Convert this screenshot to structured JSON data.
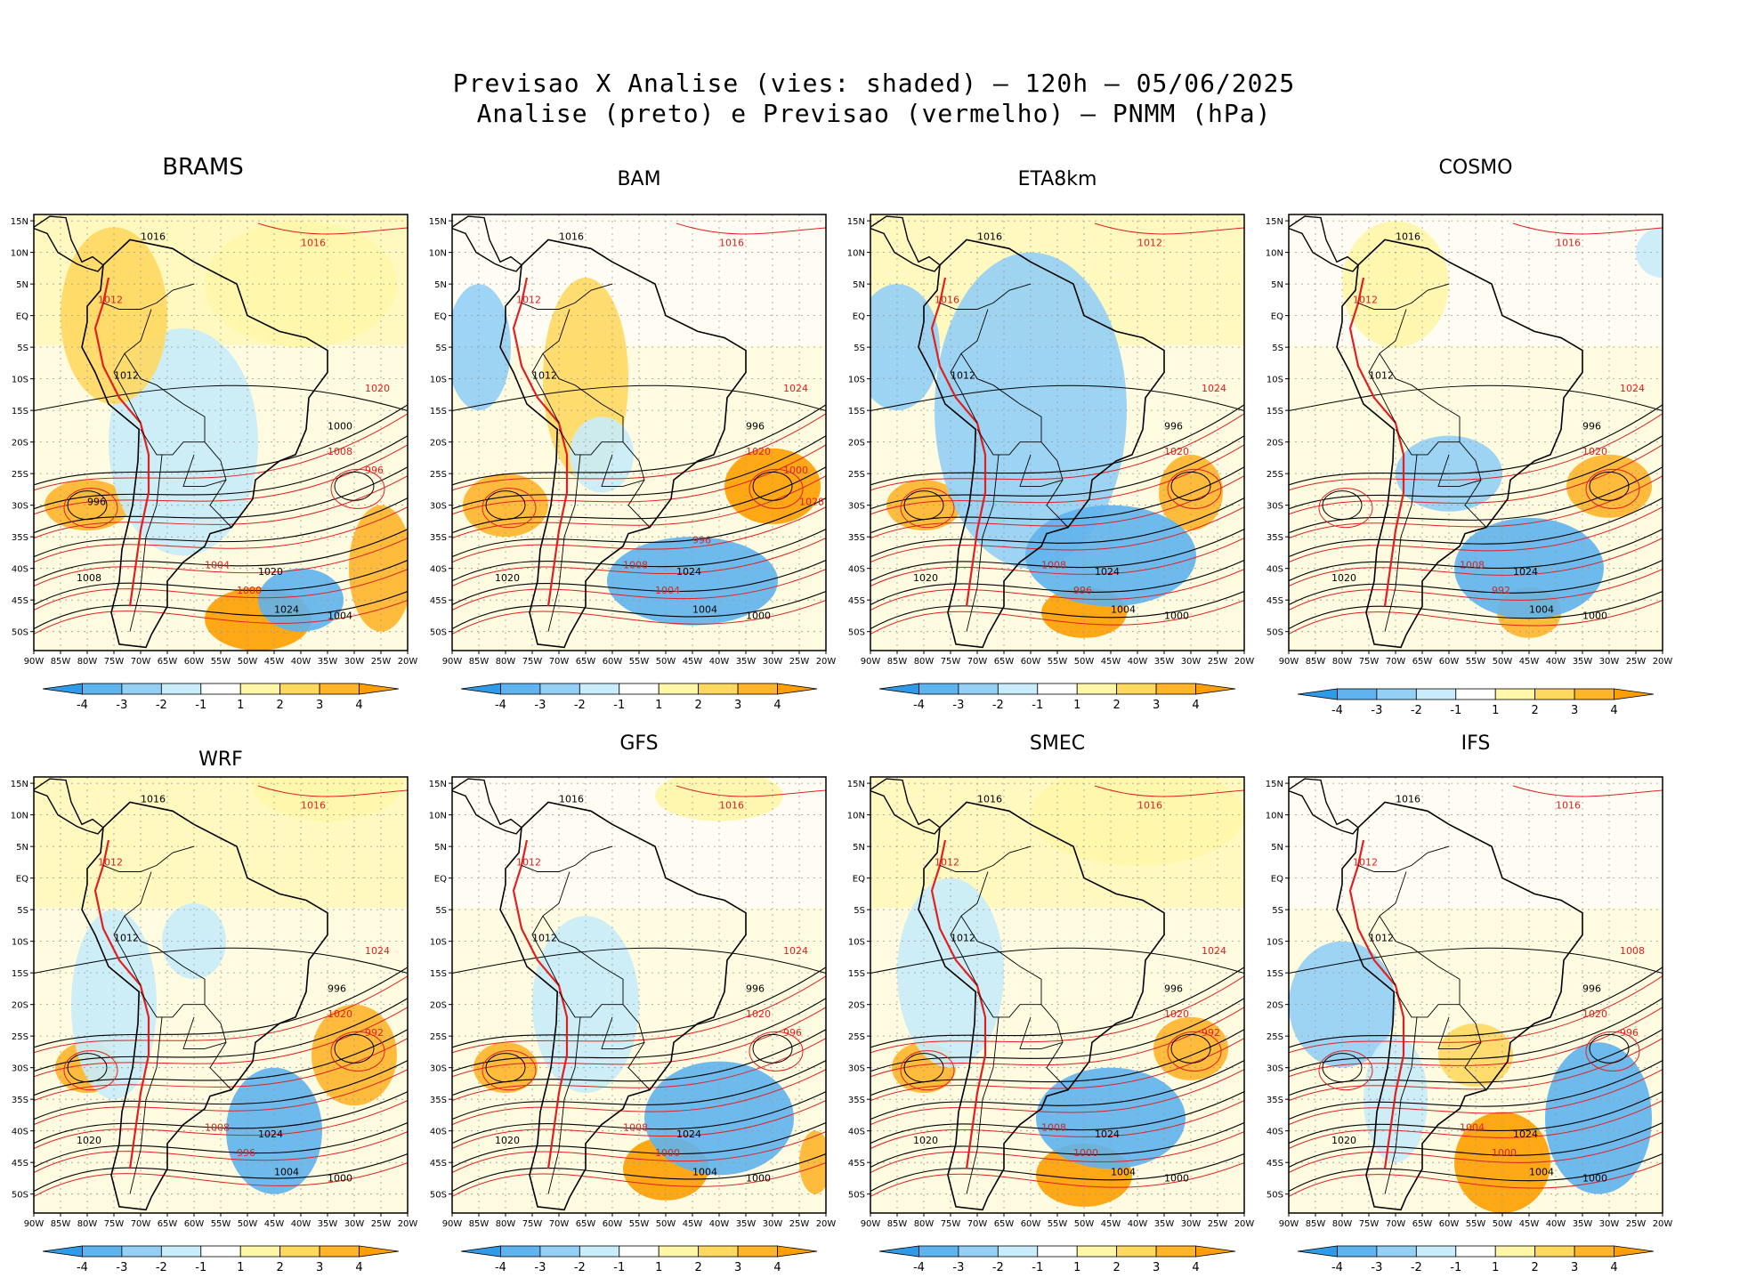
{
  "header": {
    "line1": "Previsao X Analise (vies: shaded) – 120h – 05/06/2025",
    "line2": "Analise (preto) e Previsao (vermelho) – PNMM (hPa)"
  },
  "axes": {
    "lat_labels": [
      "15N",
      "10N",
      "5N",
      "EQ",
      "5S",
      "10S",
      "15S",
      "20S",
      "25S",
      "30S",
      "35S",
      "40S",
      "45S",
      "50S"
    ],
    "lon_labels": [
      "90W",
      "85W",
      "80W",
      "75W",
      "70W",
      "65W",
      "60W",
      "55W",
      "50W",
      "45W",
      "40W",
      "35W",
      "30W",
      "25W",
      "20W"
    ]
  },
  "colorbar": {
    "labels": [
      "-4",
      "-3",
      "-2",
      "-1",
      "1",
      "2",
      "3",
      "4"
    ],
    "colors": [
      "#2f9be8",
      "#5fb3ee",
      "#94cff5",
      "#c8ecfa",
      "#ffffff",
      "#fff6a8",
      "#ffd860",
      "#ffb52a",
      "#ff9e00"
    ]
  },
  "colors": {
    "analysis": "#000000",
    "forecast": "#e02020",
    "coast": "#000000"
  },
  "panels": [
    {
      "name": "BRAMS",
      "isobars_black": [
        "1016",
        "1012",
        "1008",
        "1020",
        "1024",
        "1004",
        "1000",
        "996"
      ],
      "isobars_red": [
        "1016",
        "1012",
        "1008",
        "1020",
        "1004",
        "1000",
        "996"
      ]
    },
    {
      "name": "BAM",
      "isobars_black": [
        "1016",
        "1012",
        "1020",
        "1024",
        "1004",
        "1000",
        "996"
      ],
      "isobars_red": [
        "1016",
        "1012",
        "1020",
        "1024",
        "1008",
        "1004",
        "1000",
        "996",
        "1028"
      ]
    },
    {
      "name": "ETA8km",
      "isobars_black": [
        "1016",
        "1012",
        "1020",
        "1024",
        "1004",
        "1000",
        "996"
      ],
      "isobars_red": [
        "1012",
        "1016",
        "1020",
        "1024",
        "1008",
        "996"
      ]
    },
    {
      "name": "COSMO",
      "isobars_black": [
        "1016",
        "1012",
        "1020",
        "1024",
        "1004",
        "1000",
        "996"
      ],
      "isobars_red": [
        "1016",
        "1012",
        "1020",
        "1024",
        "1008",
        "992"
      ]
    },
    {
      "name": "WRF",
      "isobars_black": [
        "1016",
        "1012",
        "1020",
        "1024",
        "1004",
        "1000",
        "996"
      ],
      "isobars_red": [
        "1016",
        "1012",
        "1020",
        "1024",
        "1008",
        "996",
        "992"
      ]
    },
    {
      "name": "GFS",
      "isobars_black": [
        "1016",
        "1012",
        "1020",
        "1024",
        "1004",
        "1000",
        "996"
      ],
      "isobars_red": [
        "1016",
        "1012",
        "1020",
        "1024",
        "1008",
        "1000",
        "996"
      ]
    },
    {
      "name": "SMEC",
      "isobars_black": [
        "1016",
        "1012",
        "1020",
        "1024",
        "1004",
        "1000",
        "996"
      ],
      "isobars_red": [
        "1016",
        "1012",
        "1020",
        "1024",
        "1008",
        "1000",
        "992"
      ]
    },
    {
      "name": "IFS",
      "isobars_black": [
        "1016",
        "1012",
        "1020",
        "1024",
        "1004",
        "1000",
        "996"
      ],
      "isobars_red": [
        "1016",
        "1012",
        "1020",
        "1008",
        "1004",
        "1000",
        "996"
      ]
    }
  ]
}
